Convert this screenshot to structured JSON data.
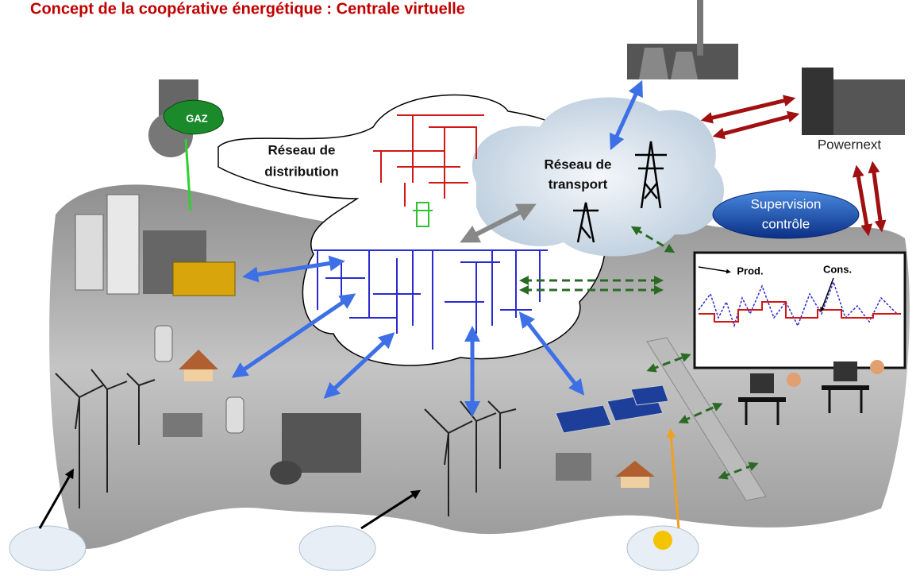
{
  "title": "Concept de la coopérative énergétique : Centrale virtuelle",
  "gas": "GAZ",
  "distribution": [
    "Réseau de",
    "distribution"
  ],
  "transport": [
    "Réseau de",
    "transport"
  ],
  "supervision": [
    "Supervision",
    "contrôle"
  ],
  "market": "Powernext",
  "screen": {
    "production": "Prod.",
    "consumption": "Cons."
  }
}
